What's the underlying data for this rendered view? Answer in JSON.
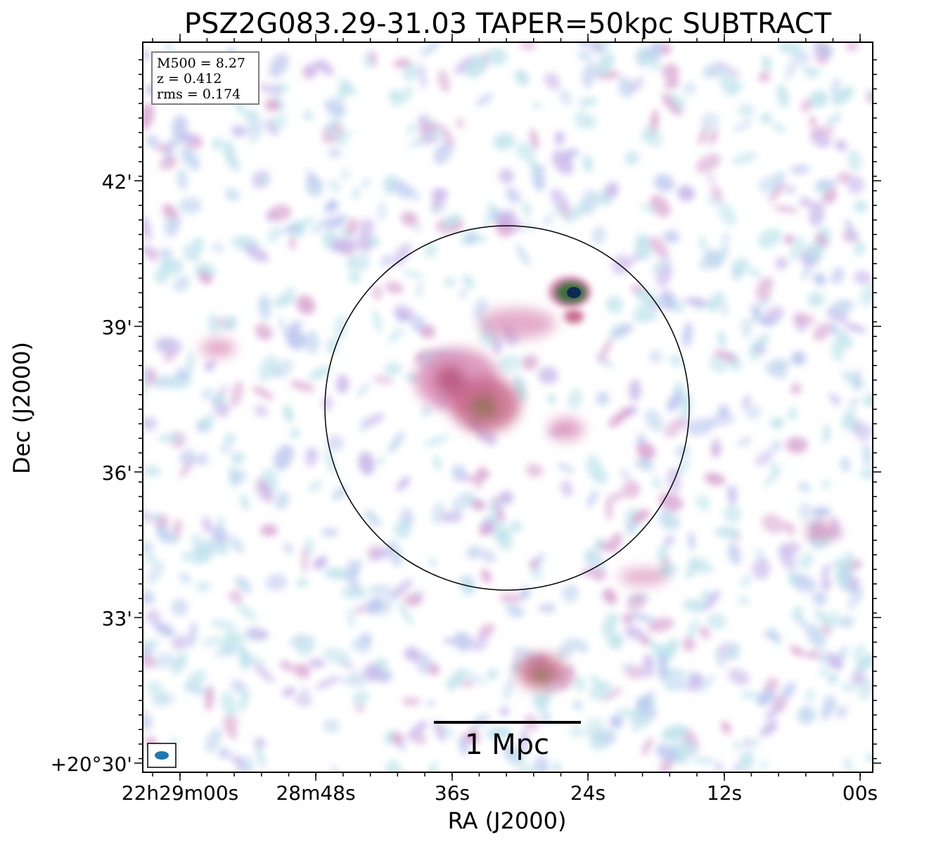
{
  "title": "PSZ2G083.29-31.03 TAPER=50kpc SUBTRACT",
  "info_box": {
    "m500": "M500 = 8.27",
    "z": "z = 0.412",
    "rms": "rms = 0.174"
  },
  "scale_bar_label": "1 Mpc",
  "x_axis": {
    "label": "RA (J2000)",
    "ticks": [
      "22h29m00s",
      "28m48s",
      "36s",
      "24s",
      "12s",
      "00s"
    ]
  },
  "y_axis": {
    "label": "Dec (J2000)",
    "ticks": [
      "42'",
      "39'",
      "36'",
      "33'",
      "+20°30'"
    ]
  },
  "colors": {
    "frame": "#000000",
    "beam": "#1f77b4",
    "noise_light": "#bfe3ec",
    "noise_mid": "#b9c4ee",
    "emission_pink": "#d98ab6",
    "emission_red": "#c96a8c",
    "core_green": "#3a6e3a",
    "core_dark": "#0d2a55"
  },
  "colormap": "cubehelix-like (white → light blue → lavender → pink → green → dark blue)"
}
